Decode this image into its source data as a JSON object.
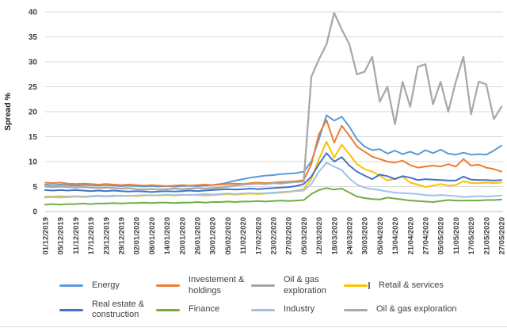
{
  "chart_data": {
    "type": "line",
    "title": "",
    "xlabel": "",
    "ylabel": "Spread %",
    "ylim": [
      0,
      40
    ],
    "y_ticks": [
      0,
      5,
      10,
      15,
      20,
      25,
      30,
      35,
      40
    ],
    "grid": "horizontal",
    "legend_position": "bottom",
    "x_tick_labels": [
      "01/12/2019",
      "05/12/2019",
      "11/12/2019",
      "17/12/2019",
      "23/12/2019",
      "29/12/2019",
      "02/01/2020",
      "08/01/2020",
      "14/01/2020",
      "20/01/2020",
      "26/01/2020",
      "30/01/2020",
      "05/02/2020",
      "11/02/2020",
      "17/02/2020",
      "23/02/2020",
      "27/02/2020",
      "05/03/2020",
      "12/03/2020",
      "18/03/2020",
      "24/03/2020",
      "30/03/2020",
      "05/04/2020",
      "13/04/2020",
      "21/04/2020",
      "27/04/2020",
      "05/05/2020",
      "11/05/2020",
      "17/05/2020",
      "21/05/2020",
      "27/05/2020"
    ],
    "x_note": "61 evenly spaced points per series; every 2nd point aligns with a tick label. Values in Spread %, estimated from gridlines.",
    "series": [
      {
        "name": "Energy",
        "color": "#5B9BD5",
        "values": [
          5.4,
          5.3,
          5.4,
          5.3,
          5.2,
          5.3,
          5.3,
          5.2,
          5.3,
          5.2,
          5.1,
          5.2,
          5.1,
          5.0,
          5.1,
          5.0,
          5.1,
          5.0,
          5.1,
          5.2,
          5.1,
          5.2,
          5.3,
          5.5,
          5.8,
          6.2,
          6.5,
          6.8,
          7.0,
          7.2,
          7.3,
          7.5,
          7.6,
          7.7,
          8.0,
          10.0,
          14.5,
          19.3,
          18.2,
          19.0,
          17.0,
          14.5,
          13.0,
          12.3,
          12.5,
          11.6,
          12.2,
          11.5,
          12.0,
          11.4,
          12.3,
          11.7,
          12.4,
          11.6,
          11.4,
          11.8,
          11.4,
          11.5,
          11.4,
          12.2,
          13.2
        ]
      },
      {
        "name": "Investement & holdings",
        "color": "#ED7D31",
        "values": [
          5.8,
          5.7,
          5.8,
          5.6,
          5.5,
          5.6,
          5.5,
          5.4,
          5.5,
          5.4,
          5.3,
          5.4,
          5.3,
          5.2,
          5.3,
          5.2,
          5.1,
          5.2,
          5.3,
          5.2,
          5.3,
          5.4,
          5.3,
          5.4,
          5.5,
          5.6,
          5.5,
          5.7,
          5.8,
          5.7,
          5.8,
          5.9,
          6.0,
          6.1,
          6.3,
          9.5,
          15.5,
          18.3,
          13.8,
          17.2,
          15.2,
          13.0,
          12.0,
          11.0,
          10.5,
          10.0,
          9.8,
          10.2,
          9.3,
          8.8,
          9.0,
          9.2,
          9.0,
          9.5,
          9.0,
          10.5,
          9.2,
          9.4,
          8.8,
          8.5,
          8.0
        ]
      },
      {
        "name": "Oil & gas exploration",
        "color": "#A5A5A5",
        "values": [
          5.0,
          4.9,
          5.0,
          4.9,
          4.8,
          4.9,
          4.8,
          4.7,
          4.8,
          4.7,
          4.6,
          4.7,
          4.5,
          4.4,
          4.5,
          4.4,
          4.5,
          4.6,
          4.5,
          4.6,
          4.7,
          4.6,
          4.7,
          4.8,
          5.0,
          5.2,
          5.4,
          5.5,
          5.6,
          5.5,
          5.7,
          5.6,
          5.8,
          5.9,
          6.0,
          27.0,
          30.5,
          33.5,
          39.8,
          36.5,
          33.5,
          27.5,
          28.0,
          31.0,
          22.0,
          25.0,
          17.5,
          26.0,
          21.0,
          29.0,
          29.5,
          21.5,
          26.0,
          20.0,
          26.0,
          31.0,
          19.5,
          26.0,
          25.5,
          18.5,
          21.0
        ]
      },
      {
        "name": "Retail & services",
        "color": "#FFC000",
        "marker_cap": "I",
        "values": [
          3.0,
          3.0,
          3.1,
          3.0,
          3.1,
          3.0,
          3.1,
          3.2,
          3.1,
          3.2,
          3.1,
          3.2,
          3.1,
          3.2,
          3.3,
          3.2,
          3.3,
          3.2,
          3.3,
          3.4,
          3.3,
          3.2,
          3.3,
          3.4,
          3.5,
          3.4,
          3.5,
          3.6,
          3.5,
          3.6,
          3.7,
          3.8,
          3.9,
          4.2,
          4.5,
          6.5,
          10.5,
          14.0,
          10.8,
          13.4,
          11.5,
          9.5,
          8.5,
          8.0,
          7.2,
          6.2,
          6.6,
          7.0,
          5.8,
          5.4,
          4.9,
          5.2,
          5.5,
          5.2,
          5.3,
          6.1,
          5.7,
          5.7,
          5.8,
          5.7,
          5.8
        ]
      },
      {
        "name": "Real estate & construction",
        "color": "#4472C4",
        "values": [
          4.3,
          4.2,
          4.3,
          4.2,
          4.3,
          4.2,
          4.1,
          4.2,
          4.1,
          4.2,
          4.1,
          4.0,
          4.1,
          4.0,
          3.9,
          4.0,
          4.1,
          4.0,
          4.1,
          4.2,
          4.1,
          4.2,
          4.3,
          4.4,
          4.5,
          4.4,
          4.5,
          4.6,
          4.5,
          4.6,
          4.7,
          4.8,
          4.9,
          5.1,
          5.5,
          7.0,
          9.5,
          11.7,
          10.0,
          10.9,
          9.2,
          8.0,
          7.2,
          6.5,
          7.4,
          7.1,
          6.5,
          7.1,
          6.8,
          6.3,
          6.5,
          6.4,
          6.3,
          6.2,
          6.2,
          7.0,
          6.4,
          6.3,
          6.3,
          6.2,
          6.3
        ]
      },
      {
        "name": "Finance",
        "color": "#70AD47",
        "values": [
          1.4,
          1.5,
          1.4,
          1.5,
          1.5,
          1.6,
          1.5,
          1.6,
          1.6,
          1.7,
          1.6,
          1.7,
          1.7,
          1.8,
          1.7,
          1.8,
          1.8,
          1.7,
          1.8,
          1.8,
          1.9,
          1.8,
          1.9,
          1.9,
          2.0,
          1.9,
          2.0,
          2.0,
          2.1,
          2.0,
          2.1,
          2.2,
          2.1,
          2.2,
          2.3,
          3.5,
          4.3,
          4.7,
          4.4,
          4.6,
          3.8,
          3.0,
          2.7,
          2.5,
          2.4,
          2.8,
          2.6,
          2.4,
          2.2,
          2.1,
          2.0,
          1.9,
          2.1,
          2.3,
          2.2,
          2.2,
          2.2,
          2.2,
          2.3,
          2.3,
          2.4
        ]
      },
      {
        "name": "Industry",
        "color": "#9DC3E6",
        "values": [
          2.8,
          2.9,
          2.8,
          2.9,
          3.0,
          2.9,
          3.0,
          3.1,
          3.0,
          3.1,
          3.2,
          3.1,
          3.2,
          3.3,
          3.2,
          3.3,
          3.4,
          3.3,
          3.4,
          3.3,
          3.4,
          3.5,
          3.4,
          3.5,
          3.6,
          3.5,
          3.6,
          3.7,
          3.6,
          3.7,
          3.8,
          3.9,
          4.0,
          4.1,
          4.2,
          5.5,
          8.0,
          9.8,
          9.0,
          8.3,
          6.6,
          5.4,
          4.8,
          4.5,
          4.3,
          4.0,
          3.8,
          3.7,
          3.6,
          3.5,
          3.3,
          3.2,
          3.3,
          3.2,
          3.1,
          2.9,
          3.0,
          3.1,
          3.0,
          3.1,
          3.2
        ]
      },
      {
        "name": "Oil & gas exploration",
        "color": "#A9A9A9",
        "values": [
          5.0,
          4.9,
          5.0,
          4.9,
          4.8,
          4.9,
          4.8,
          4.7,
          4.8,
          4.7,
          4.6,
          4.7,
          4.5,
          4.4,
          4.5,
          4.4,
          4.5,
          4.6,
          4.5,
          4.6,
          4.7,
          4.6,
          4.7,
          4.8,
          5.0,
          5.2,
          5.4,
          5.5,
          5.6,
          5.5,
          5.7,
          5.6,
          5.8,
          5.9,
          6.0,
          27.0,
          30.5,
          33.5,
          39.8,
          36.5,
          33.5,
          27.5,
          28.0,
          31.0,
          22.0,
          25.0,
          17.5,
          26.0,
          21.0,
          29.0,
          29.5,
          21.5,
          26.0,
          20.0,
          26.0,
          31.0,
          19.5,
          26.0,
          25.5,
          18.5,
          21.0
        ]
      }
    ]
  },
  "style": {
    "gridline_color": "#D9D9D9",
    "axis_line_color": "#BFBFBF",
    "tick_label_color": "#404040",
    "background": "#FFFFFF"
  }
}
